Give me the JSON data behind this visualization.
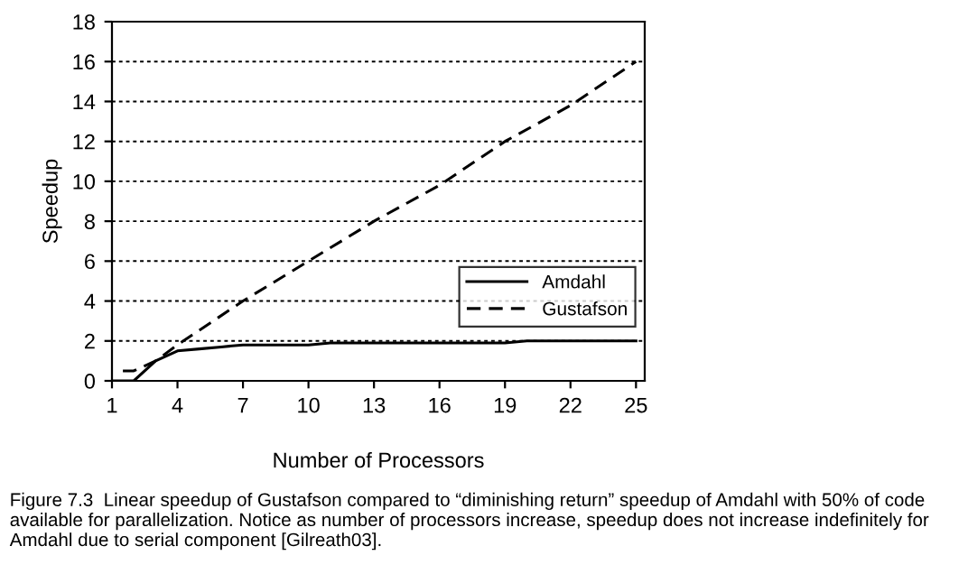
{
  "chart_data": {
    "type": "line",
    "xlabel": "Number of Processors",
    "ylabel": "Speedup",
    "xlim": [
      1,
      25.4
    ],
    "xticks": [
      1,
      4,
      7,
      10,
      13,
      16,
      19,
      22,
      25
    ],
    "ylim": [
      0,
      18
    ],
    "yticks": [
      0,
      2,
      4,
      6,
      8,
      10,
      12,
      14,
      16,
      18
    ],
    "series": [
      {
        "name": "Amdahl",
        "color": "#000000",
        "line_style": "solid",
        "x": [
          1,
          2,
          3,
          4,
          5,
          6,
          7,
          10,
          11,
          19,
          20,
          25
        ],
        "values": [
          0,
          0,
          1,
          1.5,
          1.6,
          1.7,
          1.8,
          1.8,
          1.9,
          1.9,
          2,
          2
        ]
      },
      {
        "name": "Gustafson",
        "color": "#000000",
        "line_style": "dashed",
        "x": [
          1.5,
          2,
          3,
          4,
          7,
          10,
          13,
          16,
          19,
          22,
          25
        ],
        "values": [
          0.5,
          0.5,
          1,
          1.8,
          4,
          6,
          8,
          9.8,
          12,
          13.8,
          16
        ]
      }
    ],
    "grid": "y",
    "legend": "right",
    "annotations": [
      "Figure 7.3  Linear speedup of Gustafson compared to “diminishing return” speedup of Amdahl with 50% of code available for parallelization. Notice as number of processors increase, speedup does not increase indefinitely for Amdahl due to serial component [Gilreath03]."
    ]
  }
}
